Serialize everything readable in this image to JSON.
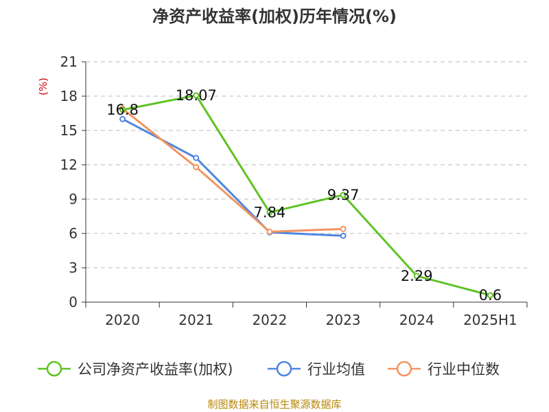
{
  "chart_data": {
    "type": "line",
    "title": "净资产收益率(加权)历年情况(%)",
    "ylabel": "(%)",
    "categories": [
      "2020",
      "2021",
      "2022",
      "2023",
      "2024",
      "2025H1"
    ],
    "ylim": [
      0,
      21
    ],
    "yticks": [
      "0",
      "3",
      "6",
      "9",
      "12",
      "15",
      "18",
      "21"
    ],
    "grid": true,
    "legend_position": "bottom",
    "series": [
      {
        "name": "公司净资产收益率(加权)",
        "color": "#5ec323",
        "values": [
          16.8,
          18.07,
          7.84,
          9.37,
          2.29,
          0.6
        ],
        "labels": [
          "16.8",
          "18.07",
          "7.84",
          "9.37",
          "2.29",
          "0.6"
        ]
      },
      {
        "name": "行业均值",
        "color": "#4f86dc",
        "values": [
          16.0,
          12.6,
          6.1,
          5.8,
          null,
          null
        ]
      },
      {
        "name": "行业中位数",
        "color": "#f29460",
        "values": [
          16.9,
          11.8,
          6.15,
          6.4,
          null,
          null
        ]
      }
    ],
    "source": "制图数据来自恒生聚源数据库"
  }
}
